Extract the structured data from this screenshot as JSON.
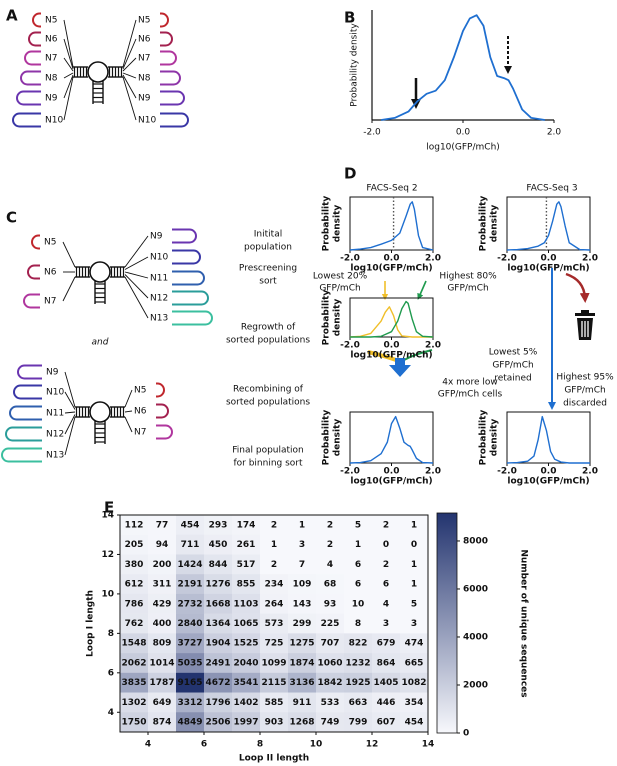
{
  "panels": [
    "A",
    "B",
    "C",
    "D",
    "E"
  ],
  "panel_a": {
    "left": [
      {
        "label": "N5",
        "color": "#c0272d"
      },
      {
        "label": "N6",
        "color": "#a3214f"
      },
      {
        "label": "N7",
        "color": "#b0369e"
      },
      {
        "label": "N8",
        "color": "#8e35a8"
      },
      {
        "label": "N9",
        "color": "#6a35b0"
      },
      {
        "label": "N10",
        "color": "#3a37a6"
      }
    ],
    "right": [
      {
        "label": "N5",
        "color": "#c0272d"
      },
      {
        "label": "N6",
        "color": "#a3214f"
      },
      {
        "label": "N7",
        "color": "#b0369e"
      },
      {
        "label": "N8",
        "color": "#8e35a8"
      },
      {
        "label": "N9",
        "color": "#6a35b0"
      },
      {
        "label": "N10",
        "color": "#3a37a6"
      }
    ]
  },
  "panel_c": {
    "top": {
      "left": [
        {
          "label": "N5",
          "color": "#c0272d"
        },
        {
          "label": "N6",
          "color": "#a3214f"
        },
        {
          "label": "N7",
          "color": "#b0369e"
        }
      ],
      "right": [
        {
          "label": "N9",
          "color": "#6a35b0"
        },
        {
          "label": "N10",
          "color": "#3a37a6"
        },
        {
          "label": "N11",
          "color": "#2f5fae"
        },
        {
          "label": "N12",
          "color": "#2a9d9a"
        },
        {
          "label": "N13",
          "color": "#3bbf9f"
        }
      ]
    },
    "joiner": "and",
    "bottom": {
      "left": [
        {
          "label": "N9",
          "color": "#6a35b0"
        },
        {
          "label": "N10",
          "color": "#3a37a6"
        },
        {
          "label": "N11",
          "color": "#2f5fae"
        },
        {
          "label": "N12",
          "color": "#2a9d9a"
        },
        {
          "label": "N13",
          "color": "#3bbf9f"
        }
      ],
      "right": [
        {
          "label": "N5",
          "color": "#c0272d"
        },
        {
          "label": "N6",
          "color": "#a3214f"
        },
        {
          "label": "N7",
          "color": "#b0369e"
        }
      ]
    }
  },
  "panel_d": {
    "columns": [
      "FACS-Seq 2",
      "FACS-Seq 3"
    ],
    "steps": [
      [
        "Initital",
        "population"
      ],
      [
        "Prescreening",
        "sort"
      ],
      [
        "Regrowth of",
        "sorted populations"
      ],
      [
        "Recombining of",
        "sorted populations"
      ],
      [
        "Final population",
        "for binning sort"
      ]
    ],
    "notes": {
      "lowest_20": [
        "Lowest 20%",
        "GFP/mCh"
      ],
      "highest_80": [
        "Highest 80%",
        "GFP/mCh"
      ],
      "more_low": [
        "4x more low",
        "GFP/mCh cells"
      ],
      "lowest_5": [
        "Lowest 5%",
        "GFP/mCh",
        "retained"
      ],
      "highest_95": [
        "Highest 95%",
        "GFP/mCh",
        "discarded"
      ]
    }
  },
  "chart_data": [
    {
      "type": "line",
      "ylabel": "Probability density",
      "xlabel": "log10(GFP/mCh)",
      "xlim": [
        -2,
        2
      ],
      "ylim": [
        0,
        1.05
      ],
      "frame": false,
      "xticks": [
        {
          "value": -2,
          "label": "-2.0"
        },
        {
          "value": 0,
          "label": "0.0"
        },
        {
          "value": 2,
          "label": "2.0"
        }
      ],
      "series": [
        {
          "color": "#1f6fd0",
          "x": [
            -1.8,
            -1.5,
            -1.2,
            -1.0,
            -0.8,
            -0.6,
            -0.4,
            -0.2,
            0,
            0.15,
            0.3,
            0.45,
            0.6,
            0.75,
            0.9,
            1.0,
            1.1,
            1.3,
            1.5,
            1.8
          ],
          "values": [
            0,
            0.02,
            0.08,
            0.18,
            0.25,
            0.28,
            0.38,
            0.6,
            0.85,
            0.97,
            1.0,
            0.9,
            0.6,
            0.42,
            0.4,
            0.38,
            0.3,
            0.1,
            0.02,
            0
          ]
        }
      ]
    },
    {
      "type": "line",
      "ylabel": [
        "Probability",
        "density"
      ],
      "xlabel": "log10(GFP/mCh)",
      "xlim": [
        -2,
        2
      ],
      "ylim": [
        0,
        1.1
      ],
      "frame": true,
      "vlines": [
        0.1
      ],
      "xticks": [
        {
          "value": -2,
          "label": "-2.0"
        },
        {
          "value": 0,
          "label": "0.0"
        },
        {
          "value": 2,
          "label": "2.0"
        }
      ],
      "series": [
        {
          "color": "#1f6fd0",
          "x": [
            -2,
            -1.5,
            -1,
            -0.5,
            0,
            0.4,
            0.7,
            0.9,
            1.0,
            1.1,
            1.3,
            1.5,
            2
          ],
          "values": [
            0,
            0.02,
            0.05,
            0.12,
            0.2,
            0.35,
            0.7,
            0.95,
            1.0,
            0.85,
            0.3,
            0.05,
            0
          ]
        }
      ]
    },
    {
      "type": "line",
      "ylabel": [
        "Probability",
        "density"
      ],
      "xlabel": "log10(GFP/mCh)",
      "xlim": [
        -2,
        2
      ],
      "ylim": [
        0,
        1.1
      ],
      "frame": true,
      "vlines": [
        -0.1
      ],
      "xticks": [
        {
          "value": -2,
          "label": "-2.0"
        },
        {
          "value": 0,
          "label": "0.0"
        },
        {
          "value": 2,
          "label": "2.0"
        }
      ],
      "series": [
        {
          "color": "#1f6fd0",
          "x": [
            -2,
            -1.5,
            -1,
            -0.5,
            -0.2,
            0,
            0.2,
            0.4,
            0.5,
            0.6,
            0.8,
            1.0,
            1.5,
            2
          ],
          "values": [
            0,
            0.01,
            0.03,
            0.08,
            0.15,
            0.3,
            0.6,
            0.95,
            1.0,
            0.9,
            0.5,
            0.15,
            0.01,
            0
          ]
        }
      ]
    },
    {
      "type": "line",
      "ylabel": [
        "Probability",
        "density"
      ],
      "xlabel": "log10(GFP/mCh)",
      "xlim": [
        -2,
        2
      ],
      "ylim": [
        0,
        1.1
      ],
      "frame": true,
      "xticks": [
        {
          "value": -2,
          "label": "-2.0"
        },
        {
          "value": 0,
          "label": "0.0"
        },
        {
          "value": 2,
          "label": "2.0"
        }
      ],
      "series": [
        {
          "color": "#f0bf2a",
          "x": [
            -2,
            -1.5,
            -1,
            -0.5,
            -0.3,
            -0.1,
            0.1,
            0.3,
            0.5,
            1,
            2
          ],
          "values": [
            0,
            0.02,
            0.1,
            0.45,
            0.7,
            0.85,
            0.6,
            0.2,
            0.03,
            0,
            0
          ]
        },
        {
          "color": "#1f9a4e",
          "x": [
            -2,
            -1,
            -0.5,
            0,
            0.3,
            0.5,
            0.7,
            0.8,
            1.0,
            1.2,
            1.5,
            2
          ],
          "values": [
            0,
            0,
            0.02,
            0.15,
            0.45,
            0.8,
            1.0,
            0.95,
            0.5,
            0.15,
            0.02,
            0
          ]
        }
      ]
    },
    {
      "type": "line",
      "ylabel": [
        "Probability",
        "density"
      ],
      "xlabel": "log10(GFP/mCh)",
      "xlim": [
        -2,
        2
      ],
      "ylim": [
        0,
        1.1
      ],
      "frame": true,
      "xticks": [
        {
          "value": -2,
          "label": "-2.0"
        },
        {
          "value": 0,
          "label": "0.0"
        },
        {
          "value": 2,
          "label": "2.0"
        }
      ],
      "series": [
        {
          "color": "#1f6fd0",
          "x": [
            -2,
            -1.5,
            -1,
            -0.5,
            -0.2,
            0,
            0.2,
            0.4,
            0.6,
            0.8,
            0.9,
            1.0,
            1.2,
            1.5,
            2
          ],
          "values": [
            0,
            0.01,
            0.05,
            0.2,
            0.45,
            0.85,
            1.0,
            0.75,
            0.45,
            0.38,
            0.36,
            0.28,
            0.1,
            0.01,
            0
          ]
        }
      ]
    },
    {
      "type": "line",
      "ylabel": [
        "Probability",
        "density"
      ],
      "xlabel": "log10(GFP/mCh)",
      "xlim": [
        -2,
        2
      ],
      "ylim": [
        0,
        1.1
      ],
      "frame": true,
      "xticks": [
        {
          "value": -2,
          "label": "-2.0"
        },
        {
          "value": 0,
          "label": "0.0"
        },
        {
          "value": 2,
          "label": "2.0"
        }
      ],
      "series": [
        {
          "color": "#1f6fd0",
          "x": [
            -2,
            -1.5,
            -1,
            -0.7,
            -0.5,
            -0.3,
            -0.1,
            0.1,
            0.3,
            0.6,
            1,
            2
          ],
          "values": [
            0,
            0.01,
            0.04,
            0.15,
            0.5,
            1.0,
            0.7,
            0.25,
            0.08,
            0.02,
            0,
            0
          ]
        }
      ]
    },
    {
      "type": "heatmap",
      "xlabel": "Loop II length",
      "ylabel": "Loop I length",
      "xlim": [
        3,
        14
      ],
      "ylim": [
        3,
        14
      ],
      "xticks": [
        4,
        6,
        8,
        10,
        12,
        14
      ],
      "yticks": [
        4,
        6,
        8,
        10,
        12,
        14
      ],
      "colors": [
        "#f7f8fc",
        "#23346f"
      ],
      "values": [
        [
          112,
          77,
          454,
          293,
          174,
          2,
          1,
          2,
          5,
          2,
          1
        ],
        [
          205,
          94,
          711,
          450,
          261,
          1,
          3,
          2,
          1,
          0,
          0
        ],
        [
          380,
          200,
          1424,
          844,
          517,
          2,
          7,
          4,
          6,
          2,
          1
        ],
        [
          612,
          311,
          2191,
          1276,
          855,
          234,
          109,
          68,
          6,
          6,
          1
        ],
        [
          786,
          429,
          2732,
          1668,
          1103,
          264,
          143,
          93,
          10,
          4,
          5
        ],
        [
          762,
          400,
          2840,
          1364,
          1065,
          573,
          299,
          225,
          8,
          3,
          3
        ],
        [
          1548,
          809,
          3727,
          1904,
          1525,
          725,
          1275,
          707,
          822,
          679,
          474
        ],
        [
          2062,
          1014,
          5035,
          2491,
          2040,
          1099,
          1874,
          1060,
          1232,
          864,
          665
        ],
        [
          3835,
          1787,
          9165,
          4672,
          3541,
          2115,
          3136,
          1842,
          1925,
          1405,
          1082
        ],
        [
          1302,
          649,
          3312,
          1796,
          1402,
          585,
          911,
          533,
          663,
          446,
          354
        ],
        [
          1750,
          874,
          4849,
          2506,
          1997,
          903,
          1268,
          749,
          799,
          607,
          454
        ]
      ],
      "colorbar": {
        "label": "Number of unique sequences",
        "lim": [
          0,
          9165
        ],
        "ticks": [
          0,
          2000,
          4000,
          6000,
          8000
        ]
      }
    }
  ]
}
